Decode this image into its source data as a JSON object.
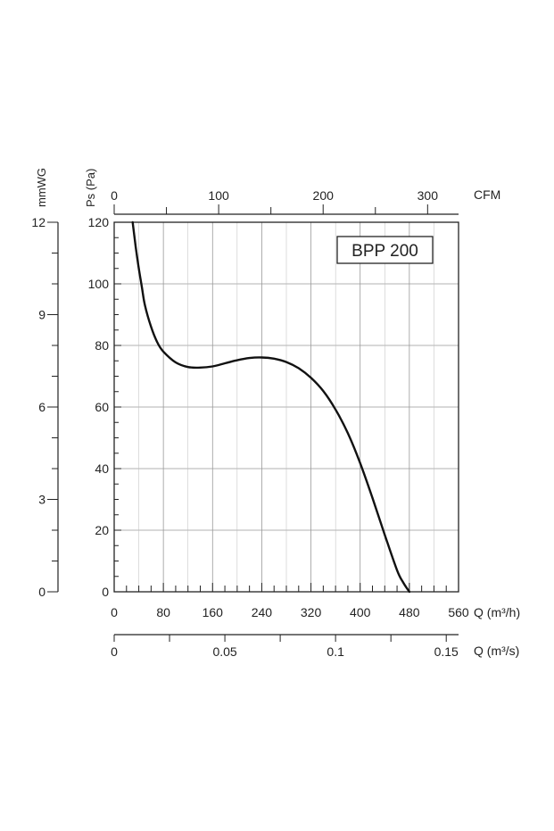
{
  "chart_data": {
    "type": "line",
    "model_label": "BPP 200",
    "axes": {
      "pressure_pa": {
        "label": "Ps (Pa)",
        "range": [
          0,
          120
        ],
        "ticks": [
          "0",
          "20",
          "40",
          "60",
          "80",
          "100",
          "120"
        ]
      },
      "pressure_mmwg": {
        "label": "mmWG",
        "range": [
          0,
          12
        ],
        "ticks": [
          "0",
          "3",
          "6",
          "9",
          "12"
        ]
      },
      "flow_m3h": {
        "label": "Q (m³/h)",
        "range": [
          0,
          560
        ],
        "ticks": [
          "0",
          "80",
          "160",
          "240",
          "320",
          "400",
          "480",
          "560"
        ]
      },
      "flow_m3s": {
        "label": "Q (m³/s)",
        "range": [
          0,
          0.155
        ],
        "ticks": [
          "0",
          "0.05",
          "0.1",
          "0.15"
        ]
      },
      "flow_cfm": {
        "label": "CFM",
        "range": [
          0,
          330
        ],
        "ticks": [
          "0",
          "100",
          "200",
          "300"
        ]
      }
    },
    "grid": true,
    "series": [
      {
        "x": [
          30,
          35,
          40,
          45,
          50,
          60,
          70,
          80,
          100,
          120,
          140,
          160,
          180,
          200,
          220,
          240,
          260,
          280,
          300,
          320,
          340,
          360,
          380,
          400,
          420,
          440,
          460,
          470,
          480
        ],
        "y": [
          120,
          112,
          105,
          99,
          93,
          86,
          81,
          78,
          74.5,
          73,
          72.8,
          73.2,
          74.2,
          75.2,
          75.9,
          76.1,
          75.7,
          74.6,
          72.6,
          69.5,
          65.2,
          59.2,
          51.5,
          41.8,
          30.5,
          18.5,
          7,
          3,
          0
        ]
      }
    ]
  }
}
